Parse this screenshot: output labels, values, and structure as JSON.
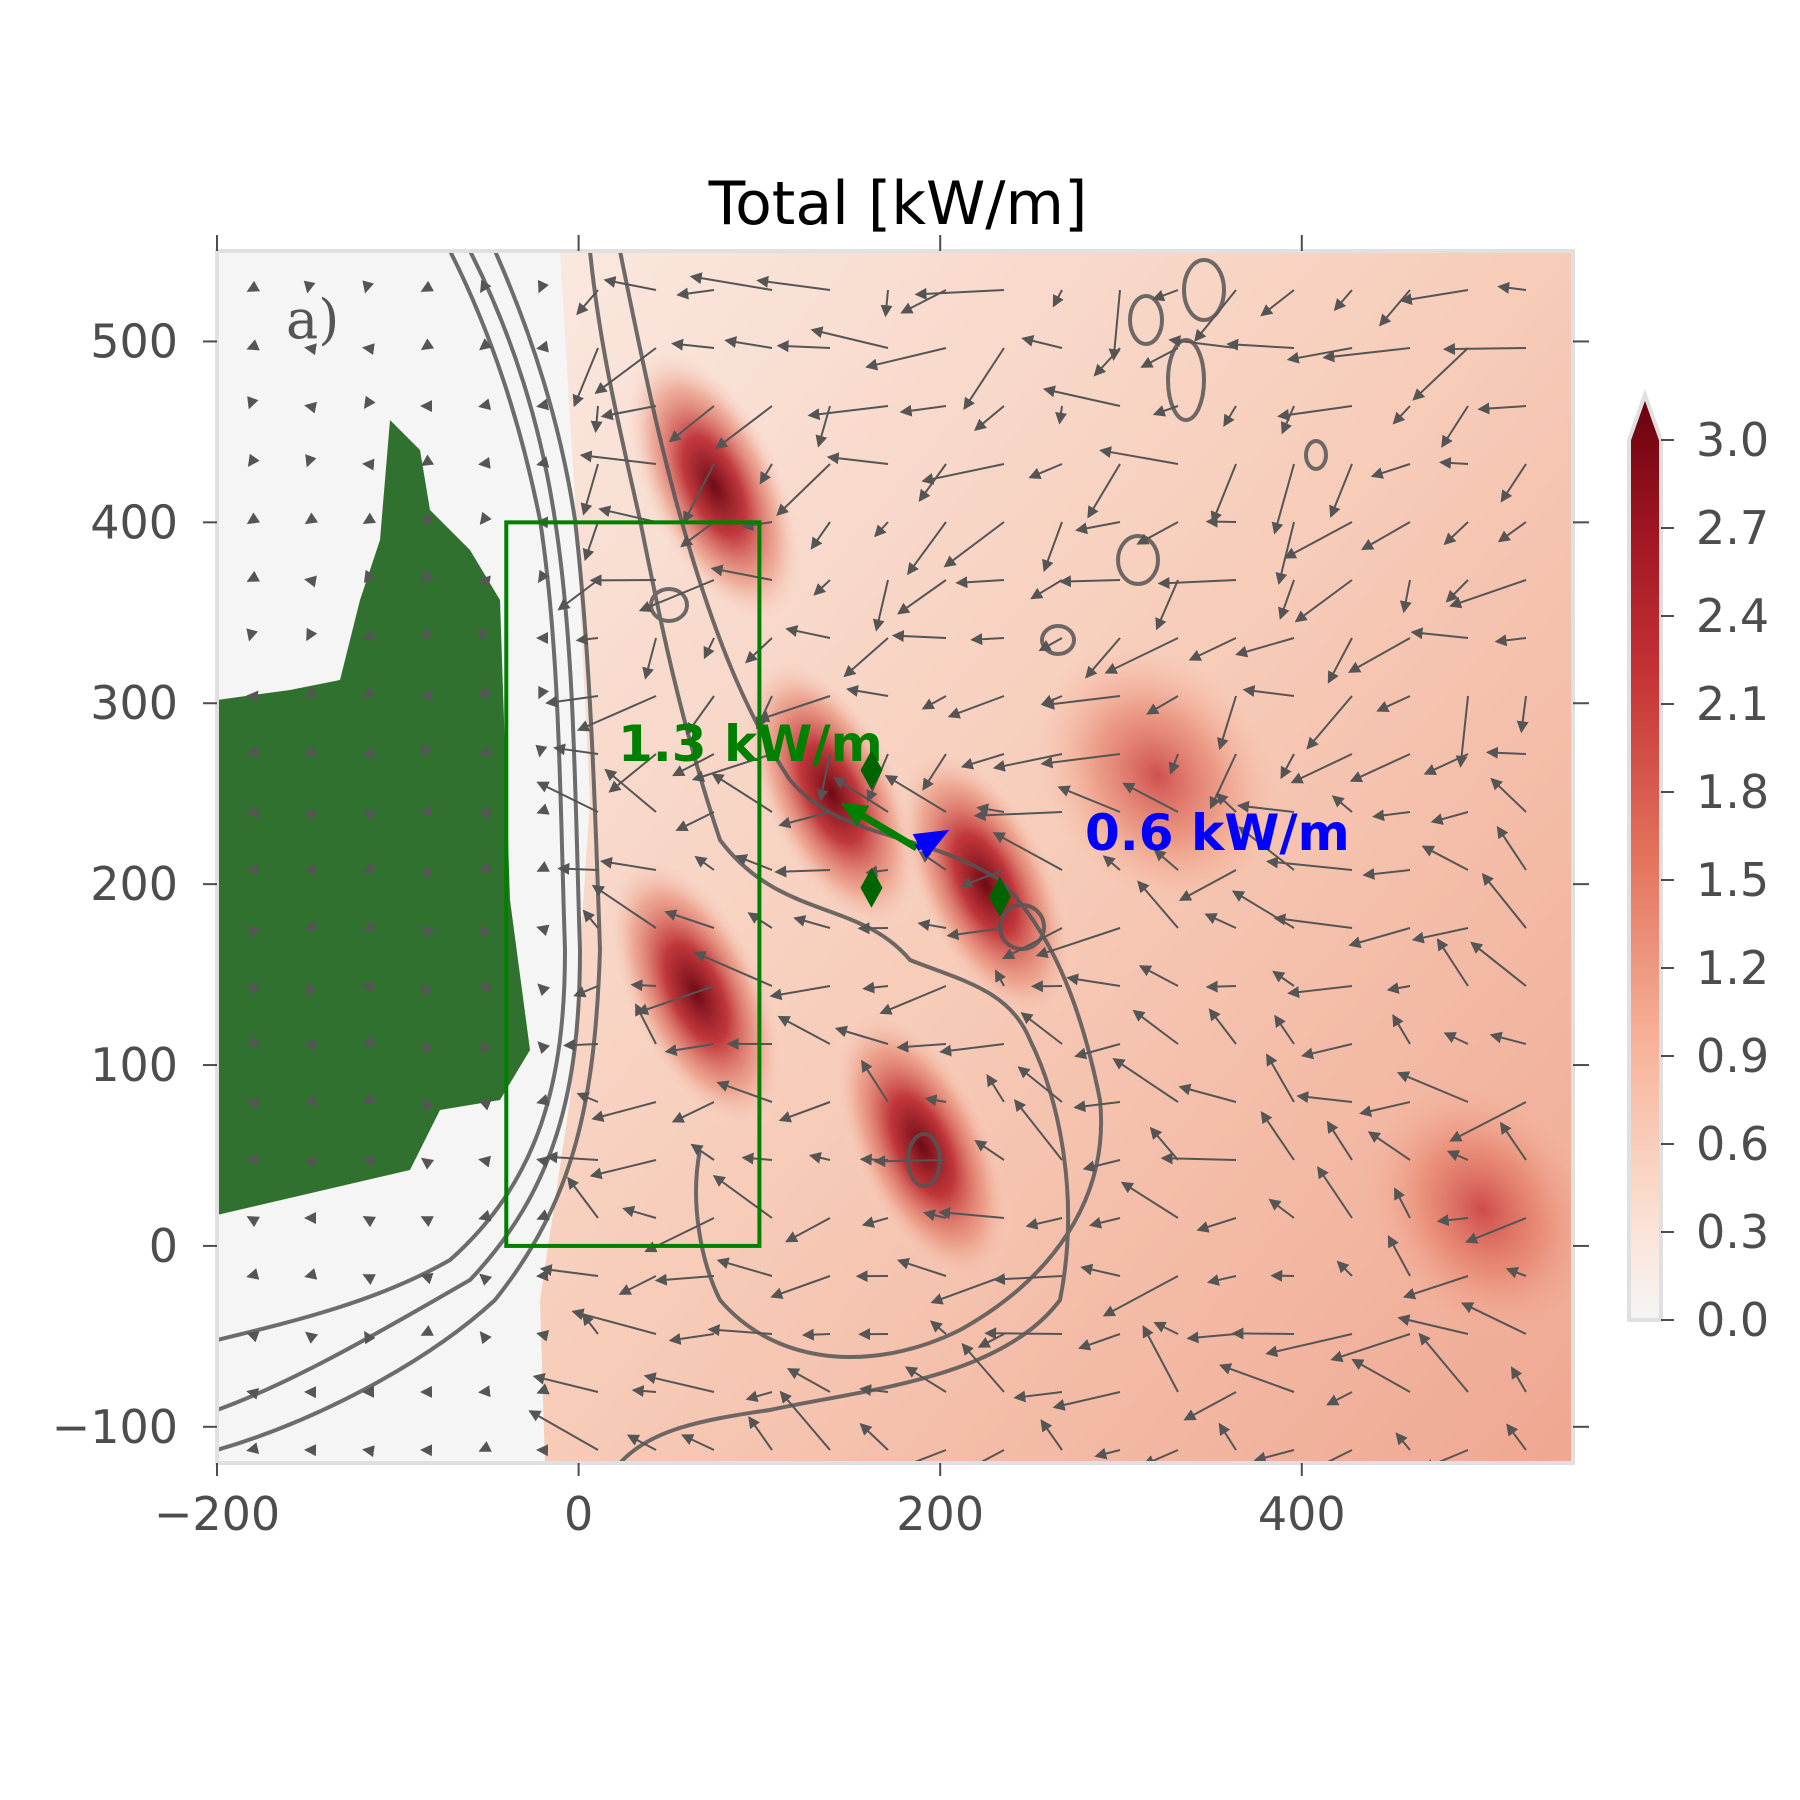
{
  "chart_data": {
    "type": "heatmap",
    "title": "Total [kW/m]",
    "panel_label": "a)",
    "xlim": [
      -200,
      550
    ],
    "ylim": [
      -120,
      550
    ],
    "xticks": [
      -200,
      0,
      200,
      400
    ],
    "xtick_labels": [
      "−200",
      "0",
      "200",
      "400"
    ],
    "yticks": [
      -100,
      0,
      100,
      200,
      300,
      400,
      500
    ],
    "ytick_labels": [
      "−100",
      "0",
      "100",
      "200",
      "300",
      "400",
      "500"
    ],
    "colorbar": {
      "range": [
        0.0,
        3.0
      ],
      "ticks": [
        "0.0",
        "0.3",
        "0.6",
        "0.9",
        "1.2",
        "1.5",
        "1.8",
        "2.1",
        "2.4",
        "2.7",
        "3.0"
      ],
      "extend": "max",
      "colormap": "Reds",
      "low_color": "#f5f5f5",
      "high_color": "#67000d"
    },
    "field_maxima": [
      {
        "x": 75,
        "y": 420,
        "value": 3.0
      },
      {
        "x": 140,
        "y": 250,
        "value": 2.8
      },
      {
        "x": 225,
        "y": 200,
        "value": 2.9
      },
      {
        "x": 65,
        "y": 140,
        "value": 3.0
      },
      {
        "x": 190,
        "y": 55,
        "value": 2.8
      },
      {
        "x": 320,
        "y": 260,
        "value": 2.2
      },
      {
        "x": 500,
        "y": 20,
        "value": 2.4
      }
    ],
    "box": {
      "x": [
        -40,
        100
      ],
      "y": [
        0,
        400
      ],
      "color": "#008000"
    },
    "flux_arrows": [
      {
        "label": "1.3 kW/m",
        "color": "#008000",
        "from": [
          187,
          220
        ],
        "to": [
          145,
          245
        ]
      },
      {
        "label": "0.6 kW/m",
        "color": "#0000ff",
        "from": [
          187,
          220
        ],
        "to": [
          205,
          230
        ]
      }
    ],
    "stations": [
      {
        "x": 162,
        "y": 263,
        "marker": "diamond",
        "color": "#006400"
      },
      {
        "x": 162,
        "y": 198,
        "marker": "diamond",
        "color": "#006400"
      },
      {
        "x": 233,
        "y": 193,
        "marker": "diamond",
        "color": "#006400"
      }
    ],
    "land_color": "#31712f",
    "contour_color": "#555555",
    "vector_color": "#555555"
  }
}
